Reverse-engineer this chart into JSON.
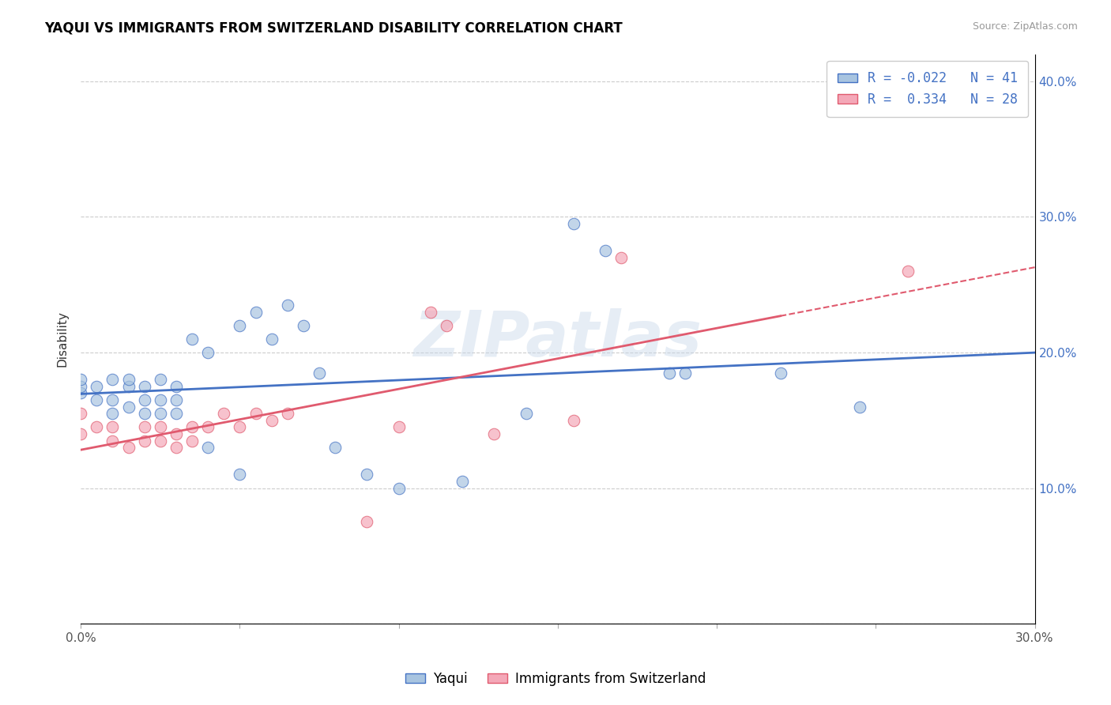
{
  "title": "YAQUI VS IMMIGRANTS FROM SWITZERLAND DISABILITY CORRELATION CHART",
  "source": "Source: ZipAtlas.com",
  "xlabel": "",
  "ylabel": "Disability",
  "xlim": [
    0.0,
    0.3
  ],
  "ylim": [
    0.0,
    0.42
  ],
  "legend_labels": [
    "Yaqui",
    "Immigrants from Switzerland"
  ],
  "legend_r": [
    -0.022,
    0.334
  ],
  "legend_n": [
    41,
    28
  ],
  "blue_color": "#a8c4e0",
  "pink_color": "#f4a8b8",
  "blue_line_color": "#4472c4",
  "pink_line_color": "#e05a6e",
  "watermark": "ZIPatlas",
  "yaqui_x": [
    0.0,
    0.0,
    0.0,
    0.005,
    0.005,
    0.01,
    0.01,
    0.01,
    0.015,
    0.015,
    0.015,
    0.02,
    0.02,
    0.02,
    0.025,
    0.025,
    0.025,
    0.03,
    0.03,
    0.03,
    0.035,
    0.04,
    0.04,
    0.05,
    0.05,
    0.055,
    0.06,
    0.065,
    0.07,
    0.075,
    0.08,
    0.09,
    0.1,
    0.12,
    0.14,
    0.155,
    0.165,
    0.185,
    0.22,
    0.245,
    0.19
  ],
  "yaqui_y": [
    0.17,
    0.175,
    0.18,
    0.165,
    0.175,
    0.155,
    0.165,
    0.18,
    0.16,
    0.175,
    0.18,
    0.155,
    0.165,
    0.175,
    0.155,
    0.165,
    0.18,
    0.155,
    0.165,
    0.175,
    0.21,
    0.13,
    0.2,
    0.11,
    0.22,
    0.23,
    0.21,
    0.235,
    0.22,
    0.185,
    0.13,
    0.11,
    0.1,
    0.105,
    0.155,
    0.295,
    0.275,
    0.185,
    0.185,
    0.16,
    0.185
  ],
  "swiss_x": [
    0.0,
    0.0,
    0.005,
    0.01,
    0.01,
    0.015,
    0.02,
    0.02,
    0.025,
    0.025,
    0.03,
    0.03,
    0.035,
    0.035,
    0.04,
    0.045,
    0.05,
    0.055,
    0.06,
    0.065,
    0.09,
    0.1,
    0.11,
    0.115,
    0.13,
    0.155,
    0.17,
    0.26
  ],
  "swiss_y": [
    0.14,
    0.155,
    0.145,
    0.135,
    0.145,
    0.13,
    0.135,
    0.145,
    0.135,
    0.145,
    0.13,
    0.14,
    0.135,
    0.145,
    0.145,
    0.155,
    0.145,
    0.155,
    0.15,
    0.155,
    0.075,
    0.145,
    0.23,
    0.22,
    0.14,
    0.15,
    0.27,
    0.26
  ]
}
